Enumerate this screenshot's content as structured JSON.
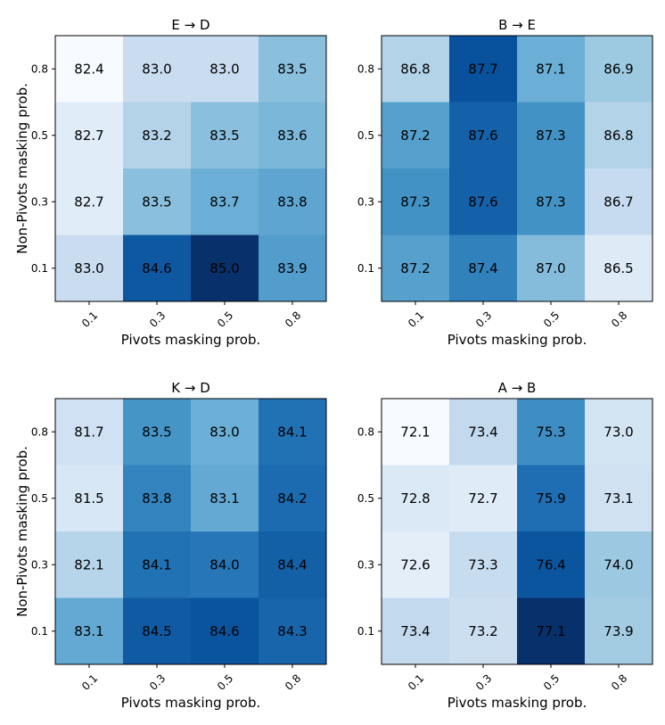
{
  "chart_data": [
    {
      "type": "heatmap",
      "title": "E → D",
      "xlabel": "Pivots masking prob.",
      "ylabel": "Non-Pivots masking prob.",
      "x_ticks": [
        "0.1",
        "0.3",
        "0.5",
        "0.8"
      ],
      "y_ticks": [
        "0.8",
        "0.5",
        "0.3",
        "0.1"
      ],
      "values": [
        [
          82.4,
          83.0,
          83.0,
          83.5
        ],
        [
          82.7,
          83.2,
          83.5,
          83.6
        ],
        [
          82.7,
          83.5,
          83.7,
          83.8
        ],
        [
          83.0,
          84.6,
          85.0,
          83.9
        ]
      ],
      "colormap": "Blues",
      "vmin": 82.4,
      "vmax": 85.0
    },
    {
      "type": "heatmap",
      "title": "B → E",
      "xlabel": "Pivots masking prob.",
      "ylabel": "",
      "x_ticks": [
        "0.1",
        "0.3",
        "0.5",
        "0.8"
      ],
      "y_ticks": [
        "0.8",
        "0.5",
        "0.3",
        "0.1"
      ],
      "values": [
        [
          86.8,
          87.7,
          87.1,
          86.9
        ],
        [
          87.2,
          87.6,
          87.3,
          86.8
        ],
        [
          87.3,
          87.6,
          87.3,
          86.7
        ],
        [
          87.2,
          87.4,
          87.0,
          86.5
        ]
      ],
      "colormap": "Blues",
      "vmin": 86.3,
      "vmax": 87.9
    },
    {
      "type": "heatmap",
      "title": "K → D",
      "xlabel": "Pivots masking prob.",
      "ylabel": "Non-Pivots masking prob.",
      "x_ticks": [
        "0.1",
        "0.3",
        "0.5",
        "0.8"
      ],
      "y_ticks": [
        "0.8",
        "0.5",
        "0.3",
        "0.1"
      ],
      "values": [
        [
          81.7,
          83.5,
          83.0,
          84.1
        ],
        [
          81.5,
          83.8,
          83.1,
          84.2
        ],
        [
          82.1,
          84.1,
          84.0,
          84.4
        ],
        [
          83.1,
          84.5,
          84.6,
          84.3
        ]
      ],
      "colormap": "Blues",
      "vmin": 80.8,
      "vmax": 85.2
    },
    {
      "type": "heatmap",
      "title": "A → B",
      "xlabel": "Pivots masking prob.",
      "ylabel": "",
      "x_ticks": [
        "0.1",
        "0.3",
        "0.5",
        "0.8"
      ],
      "y_ticks": [
        "0.8",
        "0.5",
        "0.3",
        "0.1"
      ],
      "values": [
        [
          72.1,
          73.4,
          75.3,
          73.0
        ],
        [
          72.8,
          72.7,
          75.9,
          73.1
        ],
        [
          72.6,
          73.3,
          76.4,
          74.0
        ],
        [
          73.4,
          73.2,
          77.1,
          73.9
        ]
      ],
      "colormap": "Blues",
      "vmin": 72.1,
      "vmax": 77.1
    }
  ]
}
